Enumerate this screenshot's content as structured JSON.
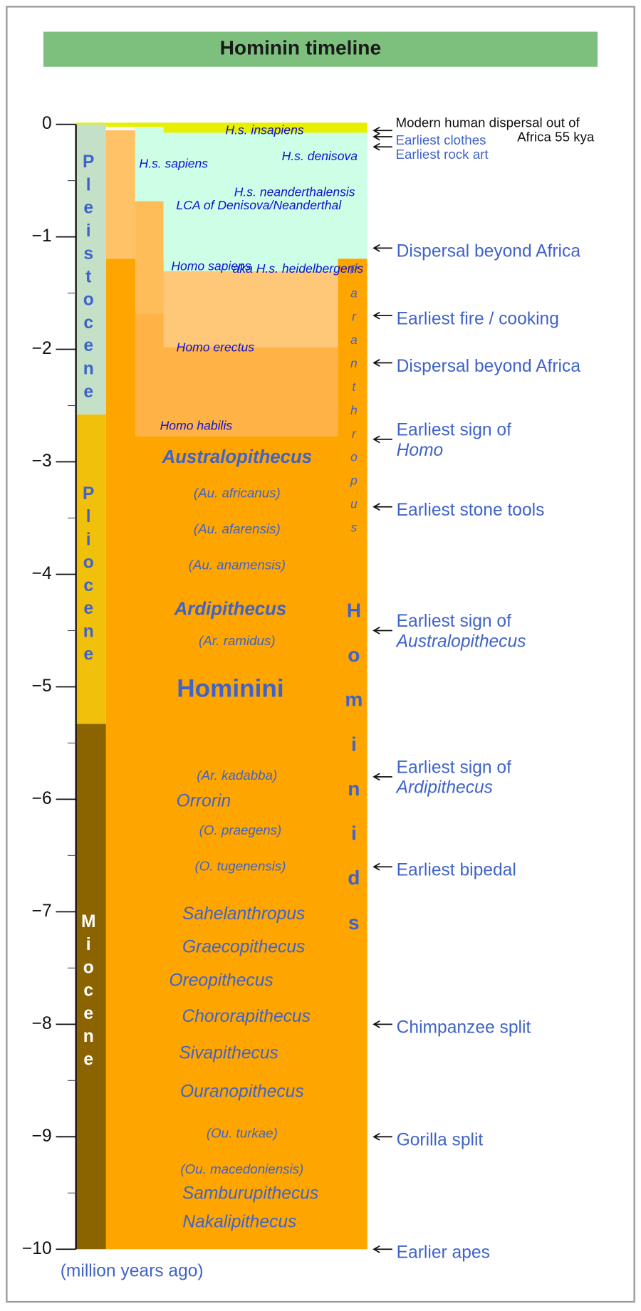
{
  "title": "Hominin timeline",
  "axis": {
    "label": "(million years ago)",
    "ticks": [
      0,
      {
        "value": -1,
        "label": "−1"
      },
      {
        "value": -2,
        "label": "−2"
      },
      {
        "value": -3,
        "label": "−3"
      },
      {
        "value": -4,
        "label": "−4"
      },
      {
        "value": -5,
        "label": "−5"
      },
      {
        "value": -6,
        "label": "−6"
      },
      {
        "value": -7,
        "label": "−7"
      },
      {
        "value": -8,
        "label": "−8"
      },
      {
        "value": -9,
        "label": "−9"
      },
      {
        "value": -10,
        "label": "−10"
      }
    ],
    "range": [
      0,
      -10
    ]
  },
  "epochs": [
    {
      "name": "Pleistocene",
      "start": 0,
      "end": -2.58,
      "color": "#c4e0c6",
      "text_color": "#3f63c8"
    },
    {
      "name": "Pliocene",
      "start": -2.58,
      "end": -5.33,
      "color": "#f0c00a",
      "text_color": "#3f63c8"
    },
    {
      "name": "Miocene",
      "start": -5.33,
      "end": -10,
      "color": "#8b6400",
      "text_color": "#ffffff"
    }
  ],
  "taxa": [
    "H.s. insapiens",
    "H.s. sapiens",
    "H.s. denisova",
    "H.s. neanderthalensis",
    "LCA of Denisova/Neanderthal",
    "Homo sapiens",
    "aka H.s. heidelbergenis",
    "Homo erectus",
    "Homo habilis",
    "Australopithecus",
    "(Au. africanus)",
    "(Au. afarensis)",
    "(Au. anamensis)",
    "Ardipithecus",
    "(Ar. ramidus)",
    "Hominini",
    "(Ar. kadabba)",
    "Orrorin",
    "(O. praegens)",
    "(O. tugenensis)",
    "Sahelanthropus",
    "Graecopithecus",
    "Oreopithecus",
    "Chororapithecus",
    "Sivapithecus",
    "Ouranopithecus",
    "(Ou. turkae)",
    "(Ou. macedoniensis)",
    "Samburupithecus",
    "Nakalipithecus"
  ],
  "columns": [
    "Paranthropus",
    "Hominids"
  ],
  "events": [
    {
      "time": -0.055,
      "lines": [
        "Modern human dispersal out of",
        "Africa 55 kya"
      ]
    },
    {
      "time": -0.11,
      "lines": [
        "Earliest clothes"
      ]
    },
    {
      "time": -0.2,
      "lines": [
        "Earliest rock art"
      ]
    },
    {
      "time": -1.1,
      "lines": [
        "Dispersal beyond Africa"
      ]
    },
    {
      "time": -1.7,
      "lines": [
        "Earliest fire / cooking"
      ]
    },
    {
      "time": -2.12,
      "lines": [
        "Dispersal beyond Africa"
      ]
    },
    {
      "time": -2.8,
      "lines": [
        "Earliest sign of",
        "Homo"
      ]
    },
    {
      "time": -3.4,
      "lines": [
        "Earliest stone tools"
      ]
    },
    {
      "time": -4.5,
      "lines": [
        "Earliest sign of",
        "Australopithecus"
      ]
    },
    {
      "time": -5.8,
      "lines": [
        "Earliest sign of",
        "Ardipithecus"
      ]
    },
    {
      "time": -6.6,
      "lines": [
        "Earliest bipedal"
      ]
    },
    {
      "time": -8,
      "lines": [
        "Chimpanzee split"
      ]
    },
    {
      "time": -9,
      "lines": [
        "Gorilla split"
      ]
    },
    {
      "time": -10,
      "lines": [
        "Earlier apes"
      ]
    }
  ]
}
